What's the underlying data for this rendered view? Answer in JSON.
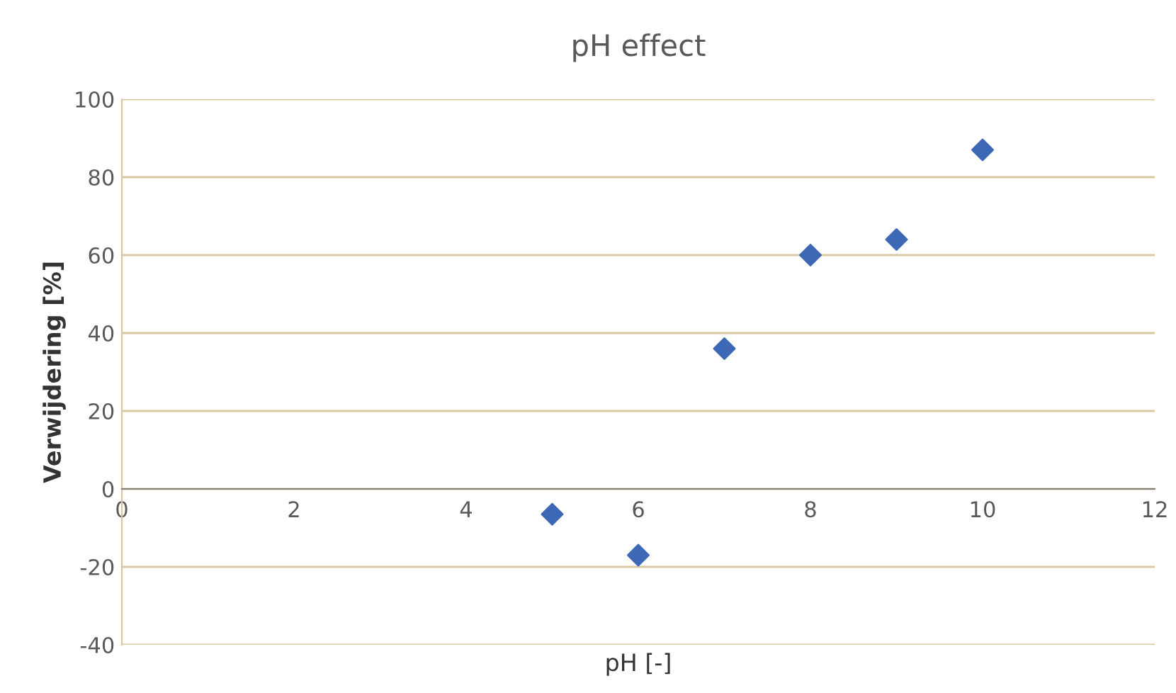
{
  "chart_data": {
    "type": "scatter",
    "title": "pH effect",
    "xlabel": "pH [-]",
    "ylabel": "Verwijdering [%]",
    "x": [
      5,
      6,
      7,
      8,
      9,
      10
    ],
    "series": [
      {
        "color": "#3d68b5",
        "values": [
          -6.5,
          -17,
          36,
          60,
          64,
          87
        ]
      }
    ],
    "xlim": [
      0,
      12
    ],
    "xticks": [
      0,
      2,
      4,
      6,
      8,
      10,
      12
    ],
    "ylim": [
      -40,
      100
    ],
    "yticks": [
      -40,
      -20,
      0,
      20,
      40,
      60,
      80,
      100
    ],
    "grid": "y",
    "marker": "diamond",
    "legend": false
  }
}
